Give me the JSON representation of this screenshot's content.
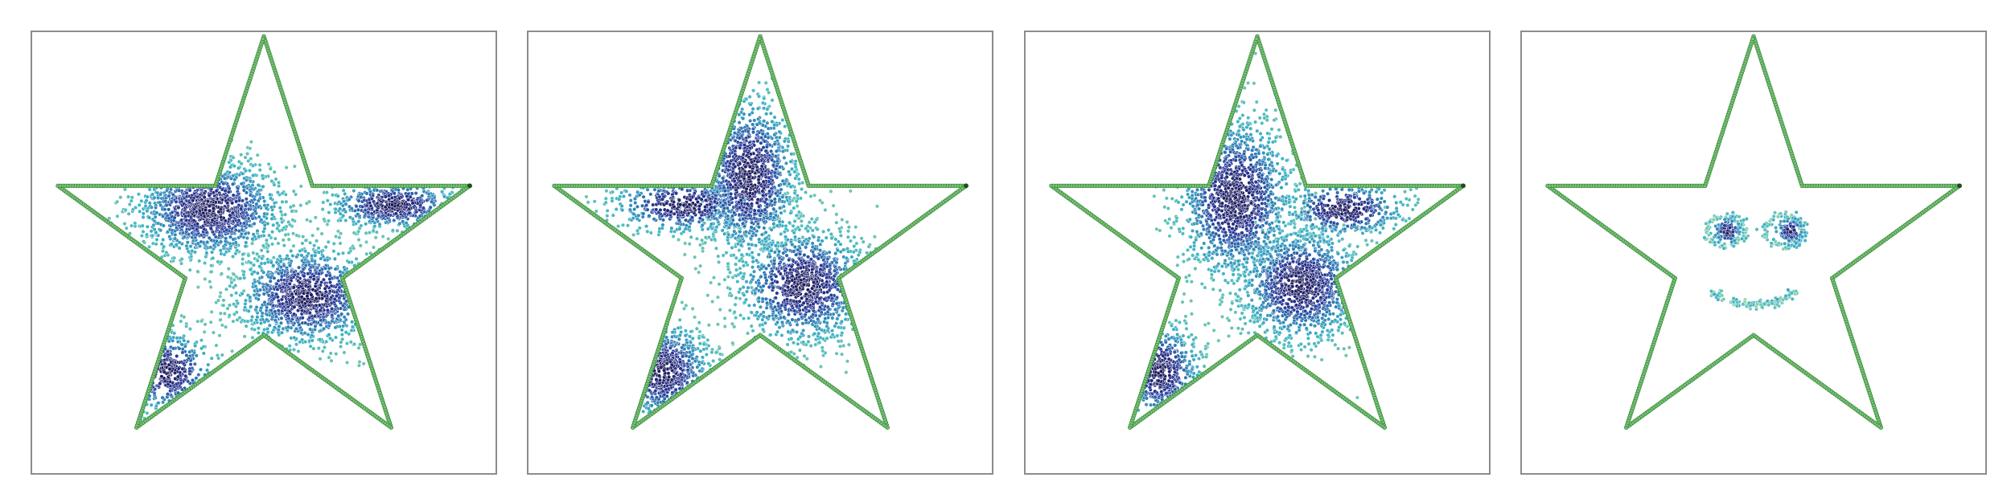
{
  "chart_data": [
    {
      "type": "scatter",
      "title": "",
      "xlabel": "",
      "ylabel": "",
      "grid": false,
      "legend": "none",
      "boundary": {
        "shape": "five-point star",
        "vertices": [
          [
            0.0,
            1.0
          ],
          [
            0.224,
            0.309
          ],
          [
            0.951,
            0.309
          ],
          [
            0.363,
            -0.118
          ],
          [
            0.588,
            -0.809
          ],
          [
            0.0,
            -0.382
          ],
          [
            -0.588,
            -0.809
          ],
          [
            -0.363,
            -0.118
          ],
          [
            -0.951,
            0.309
          ],
          [
            -0.224,
            0.309
          ]
        ],
        "color": "#3f8f3f",
        "marker_fill": "#7cc47c",
        "endpoint": [
          0.951,
          0.309
        ],
        "endpoint_color": "#1e4d1e"
      },
      "samples": {
        "colormap": [
          "#d9f0d3",
          "#7fcdaa",
          "#41b6c4",
          "#2c7fb8",
          "#253494",
          "#1d1a5c"
        ],
        "clusters": [
          {
            "center": [
              -0.25,
              0.2
            ],
            "spread": [
              0.18,
              0.12
            ],
            "weight": 0.4
          },
          {
            "center": [
              0.2,
              -0.2
            ],
            "spread": [
              0.17,
              0.12
            ],
            "weight": 0.35
          },
          {
            "center": [
              0.6,
              0.22
            ],
            "spread": [
              0.16,
              0.06
            ],
            "weight": 0.15
          },
          {
            "center": [
              -0.45,
              -0.55
            ],
            "spread": [
              0.12,
              0.1
            ],
            "weight": 0.1
          }
        ]
      }
    },
    {
      "type": "scatter",
      "title": "",
      "xlabel": "",
      "ylabel": "",
      "grid": false,
      "legend": "none",
      "boundary": {
        "shape": "five-point star",
        "vertices": [
          [
            0.0,
            1.0
          ],
          [
            0.224,
            0.309
          ],
          [
            0.951,
            0.309
          ],
          [
            0.363,
            -0.118
          ],
          [
            0.588,
            -0.809
          ],
          [
            0.0,
            -0.382
          ],
          [
            -0.588,
            -0.809
          ],
          [
            -0.363,
            -0.118
          ],
          [
            -0.951,
            0.309
          ],
          [
            -0.224,
            0.309
          ]
        ],
        "color": "#3f8f3f",
        "marker_fill": "#7cc47c",
        "endpoint": [
          0.951,
          0.309
        ],
        "endpoint_color": "#1e4d1e"
      },
      "samples": {
        "colormap": [
          "#d9f0d3",
          "#7fcdaa",
          "#41b6c4",
          "#2c7fb8",
          "#253494",
          "#1d1a5c"
        ],
        "clusters": [
          {
            "center": [
              -0.05,
              0.35
            ],
            "spread": [
              0.12,
              0.2
            ],
            "weight": 0.35
          },
          {
            "center": [
              0.2,
              -0.15
            ],
            "spread": [
              0.16,
              0.14
            ],
            "weight": 0.35
          },
          {
            "center": [
              -0.35,
              0.22
            ],
            "spread": [
              0.18,
              0.07
            ],
            "weight": 0.15
          },
          {
            "center": [
              -0.45,
              -0.55
            ],
            "spread": [
              0.12,
              0.12
            ],
            "weight": 0.15
          }
        ]
      }
    },
    {
      "type": "scatter",
      "title": "",
      "xlabel": "",
      "ylabel": "",
      "grid": false,
      "legend": "none",
      "boundary": {
        "shape": "five-point star",
        "vertices": [
          [
            0.0,
            1.0
          ],
          [
            0.224,
            0.309
          ],
          [
            0.951,
            0.309
          ],
          [
            0.363,
            -0.118
          ],
          [
            0.588,
            -0.809
          ],
          [
            0.0,
            -0.382
          ],
          [
            -0.588,
            -0.809
          ],
          [
            -0.363,
            -0.118
          ],
          [
            -0.951,
            0.309
          ],
          [
            -0.224,
            0.309
          ]
        ],
        "color": "#3f8f3f",
        "marker_fill": "#7cc47c",
        "endpoint": [
          0.951,
          0.309
        ],
        "endpoint_color": "#1e4d1e"
      },
      "samples": {
        "colormap": [
          "#d9f0d3",
          "#7fcdaa",
          "#41b6c4",
          "#2c7fb8",
          "#253494",
          "#1d1a5c"
        ],
        "clusters": [
          {
            "center": [
              -0.1,
              0.25
            ],
            "spread": [
              0.14,
              0.2
            ],
            "weight": 0.4
          },
          {
            "center": [
              0.2,
              -0.15
            ],
            "spread": [
              0.15,
              0.14
            ],
            "weight": 0.35
          },
          {
            "center": [
              0.4,
              0.2
            ],
            "spread": [
              0.15,
              0.07
            ],
            "weight": 0.13
          },
          {
            "center": [
              -0.45,
              -0.55
            ],
            "spread": [
              0.1,
              0.12
            ],
            "weight": 0.12
          }
        ]
      }
    },
    {
      "type": "scatter",
      "title": "",
      "xlabel": "",
      "ylabel": "",
      "grid": false,
      "legend": "none",
      "boundary": {
        "shape": "five-point star",
        "vertices": [
          [
            0.0,
            1.0
          ],
          [
            0.224,
            0.309
          ],
          [
            0.951,
            0.309
          ],
          [
            0.363,
            -0.118
          ],
          [
            0.588,
            -0.809
          ],
          [
            0.0,
            -0.382
          ],
          [
            -0.588,
            -0.809
          ],
          [
            -0.363,
            -0.118
          ],
          [
            -0.951,
            0.309
          ],
          [
            -0.224,
            0.309
          ]
        ],
        "color": "#3f8f3f",
        "marker_fill": "#7cc47c",
        "endpoint": [
          0.951,
          0.309
        ],
        "endpoint_color": "#1e4d1e"
      },
      "samples": {
        "colormap": [
          "#d9f0d3",
          "#7fcdaa",
          "#41b6c4",
          "#2c7fb8",
          "#253494",
          "#1d1a5c"
        ],
        "features": [
          {
            "name": "left-eye-ring",
            "center": [
              -0.13,
              0.1
            ],
            "radius": [
              0.09,
              0.07
            ]
          },
          {
            "name": "left-pupil",
            "center": [
              -0.12,
              0.1
            ],
            "spread": [
              0.03,
              0.03
            ]
          },
          {
            "name": "right-eye-ring",
            "center": [
              0.14,
              0.1
            ],
            "radius": [
              0.09,
              0.07
            ]
          },
          {
            "name": "right-pupil",
            "center": [
              0.17,
              0.1
            ],
            "spread": [
              0.03,
              0.03
            ]
          },
          {
            "name": "smile",
            "center": [
              0.0,
              -0.22
            ],
            "radius": [
              0.2,
              0.1
            ],
            "arc": [
              200,
              340
            ]
          }
        ]
      }
    }
  ]
}
